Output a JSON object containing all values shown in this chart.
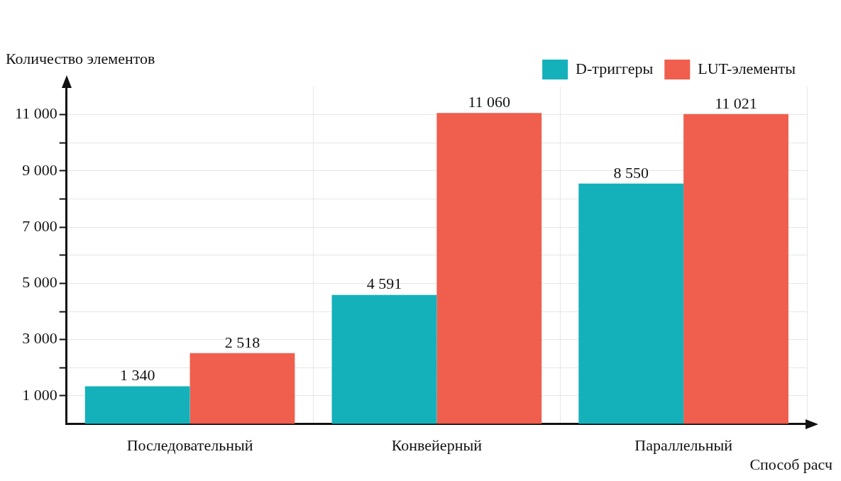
{
  "chart_data": {
    "type": "bar",
    "ylabel": "Количество элементов",
    "xlabel": "Способ расч",
    "categories": [
      "Последовательный",
      "Конвейерный",
      "Параллельный"
    ],
    "series": [
      {
        "name": "D-триггеры",
        "color": "#14b1bb",
        "values": [
          1340,
          4591,
          8550
        ],
        "value_labels": [
          "1 340",
          "4 591",
          "8 550"
        ]
      },
      {
        "name": "LUT-элементы",
        "color": "#f05e4d",
        "values": [
          2518,
          11060,
          11021
        ],
        "value_labels": [
          "2 518",
          "11 060",
          "11 021"
        ]
      }
    ],
    "ylim": [
      0,
      12000
    ],
    "yticks": [
      {
        "value": 1000,
        "label": "1 000"
      },
      {
        "value": 2000,
        "label": null
      },
      {
        "value": 3000,
        "label": "3 000"
      },
      {
        "value": 4000,
        "label": null
      },
      {
        "value": 5000,
        "label": "5 000"
      },
      {
        "value": 6000,
        "label": null
      },
      {
        "value": 7000,
        "label": "7 000"
      },
      {
        "value": 8000,
        "label": null
      },
      {
        "value": 9000,
        "label": "9 000"
      },
      {
        "value": 10000,
        "label": null
      },
      {
        "value": 11000,
        "label": "11 000"
      }
    ],
    "grid": true,
    "legend": "top right"
  }
}
